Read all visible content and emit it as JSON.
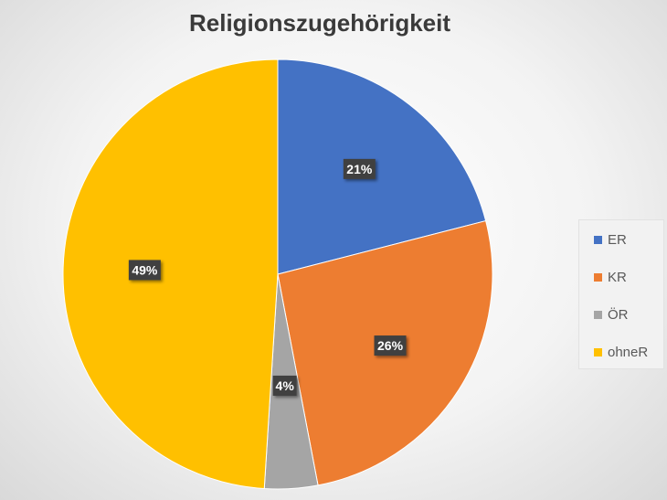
{
  "chart_data": {
    "type": "pie",
    "title": "Religionszugehörigkeit",
    "categories": [
      "ER",
      "KR",
      "ÖR",
      "ohneR"
    ],
    "values": [
      21,
      26,
      4,
      49
    ],
    "labels": [
      "21%",
      "26%",
      "4%",
      "49%"
    ],
    "colors": [
      "#4472c4",
      "#ed7d31",
      "#a5a5a5",
      "#ffc000"
    ],
    "legend_position": "right"
  }
}
